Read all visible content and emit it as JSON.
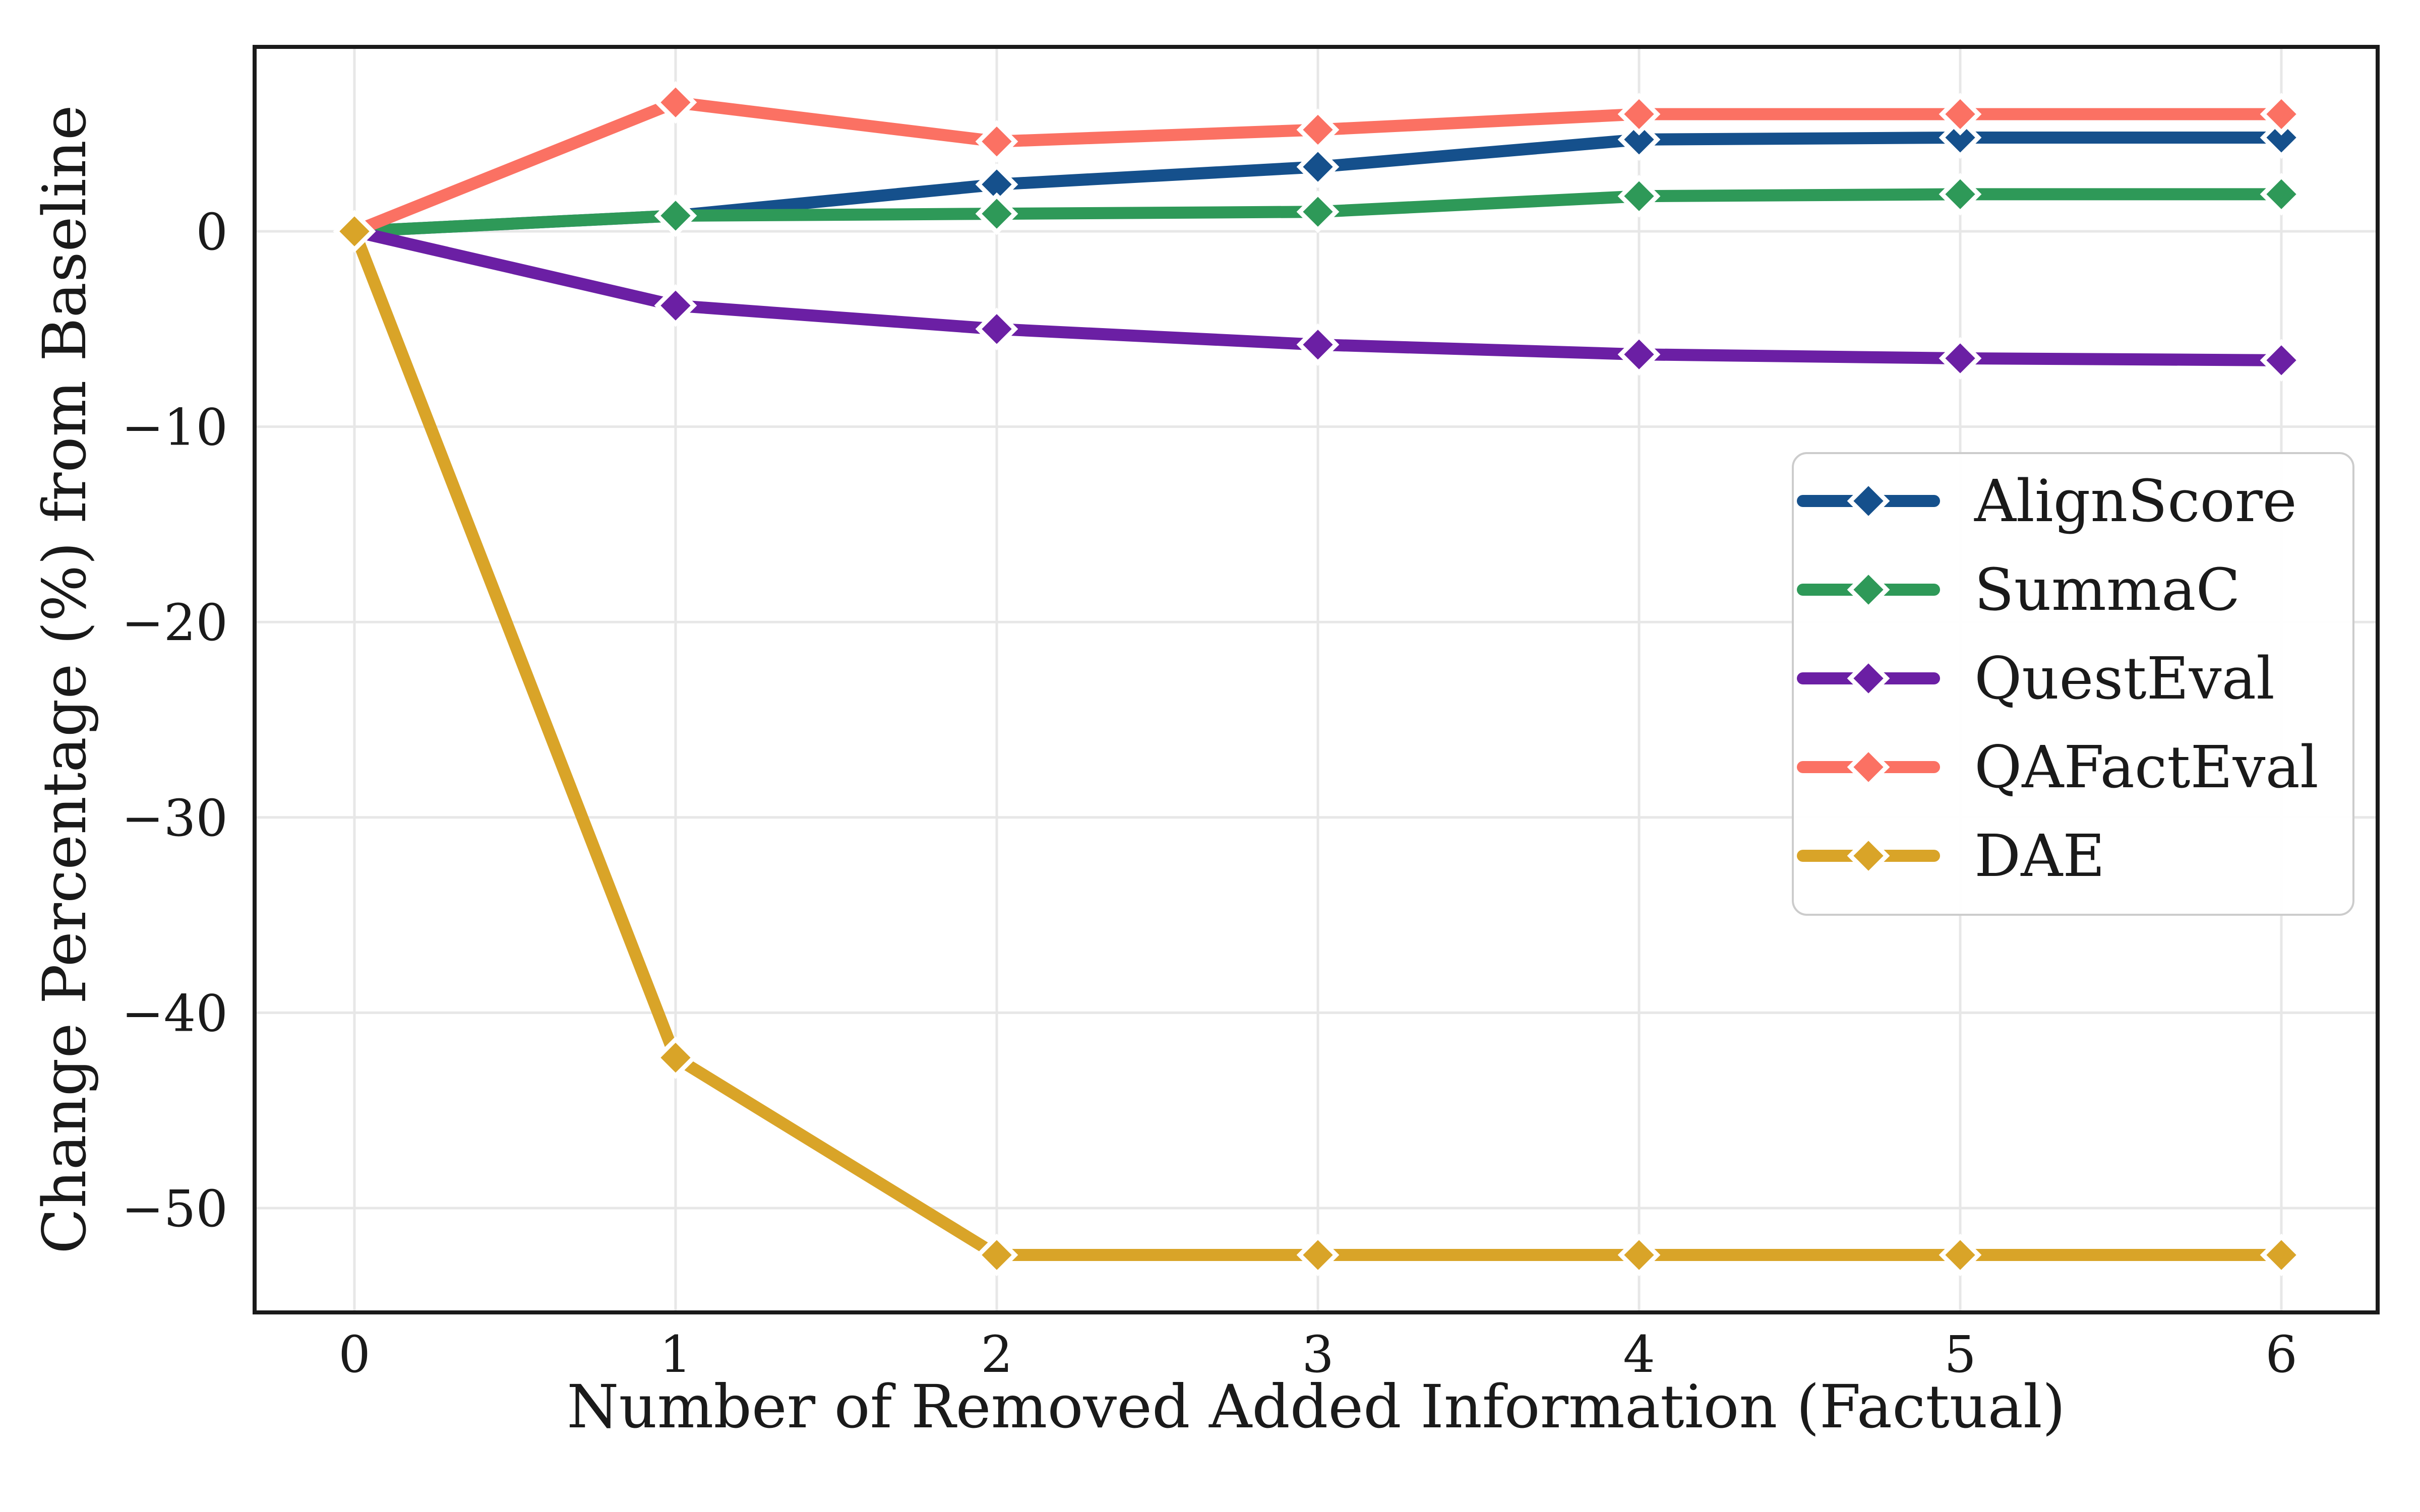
{
  "figure": {
    "background": "#ffffff"
  },
  "chart_data": {
    "type": "line",
    "title": "",
    "xlabel": "Number of Removed Added Information (Factual)",
    "ylabel": "Change Percentage (%) from Baseline",
    "x": [
      0,
      1,
      2,
      3,
      4,
      5,
      6
    ],
    "xtick_labels": [
      "0",
      "1",
      "2",
      "3",
      "4",
      "5",
      "6"
    ],
    "ytick_values": [
      0,
      -10,
      -20,
      -30,
      -40,
      -50
    ],
    "ytick_labels": [
      "0",
      "−10",
      "−20",
      "−30",
      "−40",
      "−50"
    ],
    "xlim": [
      -0.31,
      6.3
    ],
    "ylim": [
      -55.35,
      9.44
    ],
    "grid": true,
    "legend_position": "center right",
    "marker": "diamond",
    "series": [
      {
        "name": "AlignScore",
        "color": "#15508c",
        "values": [
          0,
          0.8,
          2.4,
          3.3,
          4.7,
          4.8,
          4.8
        ]
      },
      {
        "name": "SummaC",
        "color": "#2e9958",
        "values": [
          0,
          0.8,
          0.9,
          1.0,
          1.8,
          1.9,
          1.9
        ]
      },
      {
        "name": "QuestEval",
        "color": "#6b1fa4",
        "values": [
          0,
          -3.8,
          -5.0,
          -5.8,
          -6.3,
          -6.5,
          -6.6
        ]
      },
      {
        "name": "QAFactEval",
        "color": "#fb7163",
        "values": [
          0,
          6.6,
          4.6,
          5.2,
          6.0,
          6.0,
          6.0
        ]
      },
      {
        "name": "DAE",
        "color": "#d9a428",
        "values": [
          0,
          -42.3,
          -52.4,
          -52.4,
          -52.4,
          -52.4,
          -52.4
        ]
      }
    ],
    "style": {
      "grid_color": "#e7e7e7",
      "spine_color": "#1a1a1a",
      "text_color": "#1a1a1a",
      "legend_border": "#cccccc",
      "legend_bg": "#ffffff"
    }
  }
}
